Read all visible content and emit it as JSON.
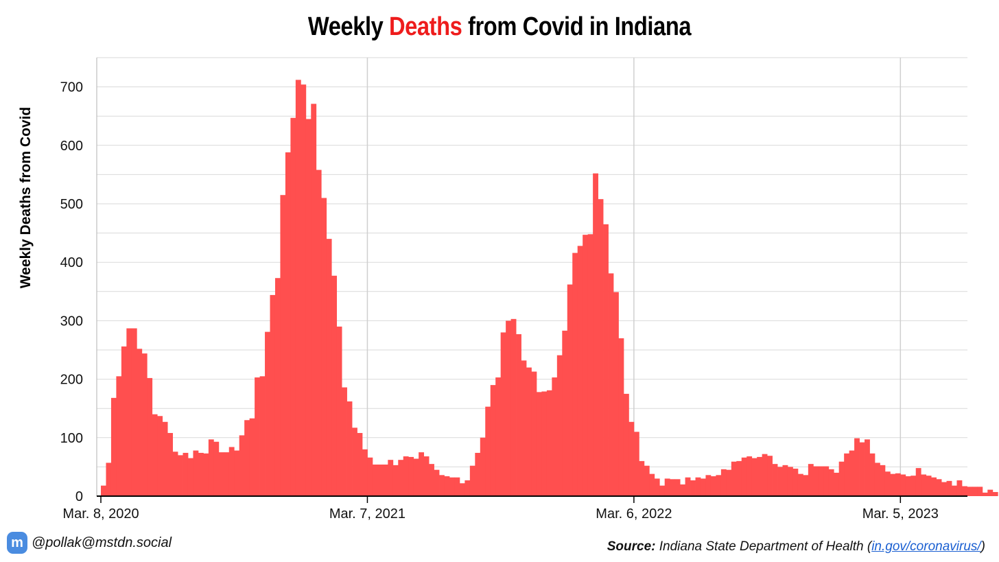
{
  "title": {
    "part1": "Weekly ",
    "highlight": "Deaths",
    "part2": " from Covid in Indiana"
  },
  "handle": {
    "icon": "mastodon-icon",
    "text": "@pollak@mstdn.social"
  },
  "source": {
    "label": "Source:",
    "text": " Indiana State Department of Health (",
    "link": "in.gov/coronavirus/",
    "close": ")"
  },
  "colors": {
    "bars": "#ff4f4f",
    "highlight": "#ee1c1c",
    "grid": "#d9d9d9",
    "link": "#1a5fd1"
  },
  "chart_data": {
    "type": "bar",
    "ylabel": "Weekly Deaths from Covid",
    "ylim": [
      0,
      750
    ],
    "yticks": [
      0,
      100,
      200,
      300,
      400,
      500,
      600,
      700
    ],
    "xtick_labels": [
      "Mar. 8, 2020",
      "Mar. 7, 2021",
      "Mar. 6, 2022",
      "Mar. 5, 2023"
    ],
    "xtick_week_index": [
      0,
      52,
      104,
      156
    ],
    "start_week": "Mar. 8, 2020",
    "interval": "weekly",
    "values": [
      18,
      57,
      168,
      205,
      256,
      287,
      287,
      252,
      244,
      202,
      140,
      137,
      127,
      108,
      76,
      70,
      74,
      65,
      78,
      74,
      73,
      97,
      93,
      75,
      75,
      84,
      78,
      104,
      130,
      133,
      203,
      205,
      281,
      344,
      373,
      515,
      588,
      647,
      712,
      704,
      645,
      671,
      558,
      510,
      440,
      377,
      290,
      186,
      162,
      117,
      108,
      80,
      66,
      54,
      54,
      54,
      62,
      53,
      62,
      68,
      67,
      64,
      75,
      68,
      55,
      45,
      36,
      34,
      32,
      32,
      22,
      27,
      52,
      74,
      100,
      153,
      190,
      203,
      280,
      300,
      303,
      277,
      232,
      220,
      213,
      178,
      179,
      181,
      203,
      241,
      283,
      362,
      416,
      428,
      447,
      448,
      552,
      508,
      465,
      381,
      349,
      270,
      175,
      127,
      110,
      60,
      52,
      38,
      30,
      18,
      30,
      29,
      29,
      20,
      32,
      27,
      32,
      30,
      36,
      34,
      36,
      46,
      45,
      59,
      60,
      66,
      68,
      65,
      67,
      72,
      69,
      55,
      50,
      53,
      50,
      47,
      38,
      36,
      55,
      51,
      51,
      51,
      46,
      40,
      59,
      73,
      78,
      99,
      92,
      97,
      73,
      57,
      53,
      42,
      38,
      39,
      37,
      34,
      35,
      48,
      37,
      35,
      32,
      29,
      24,
      26,
      18,
      27,
      17,
      16,
      16,
      16,
      6,
      11,
      7
    ]
  }
}
